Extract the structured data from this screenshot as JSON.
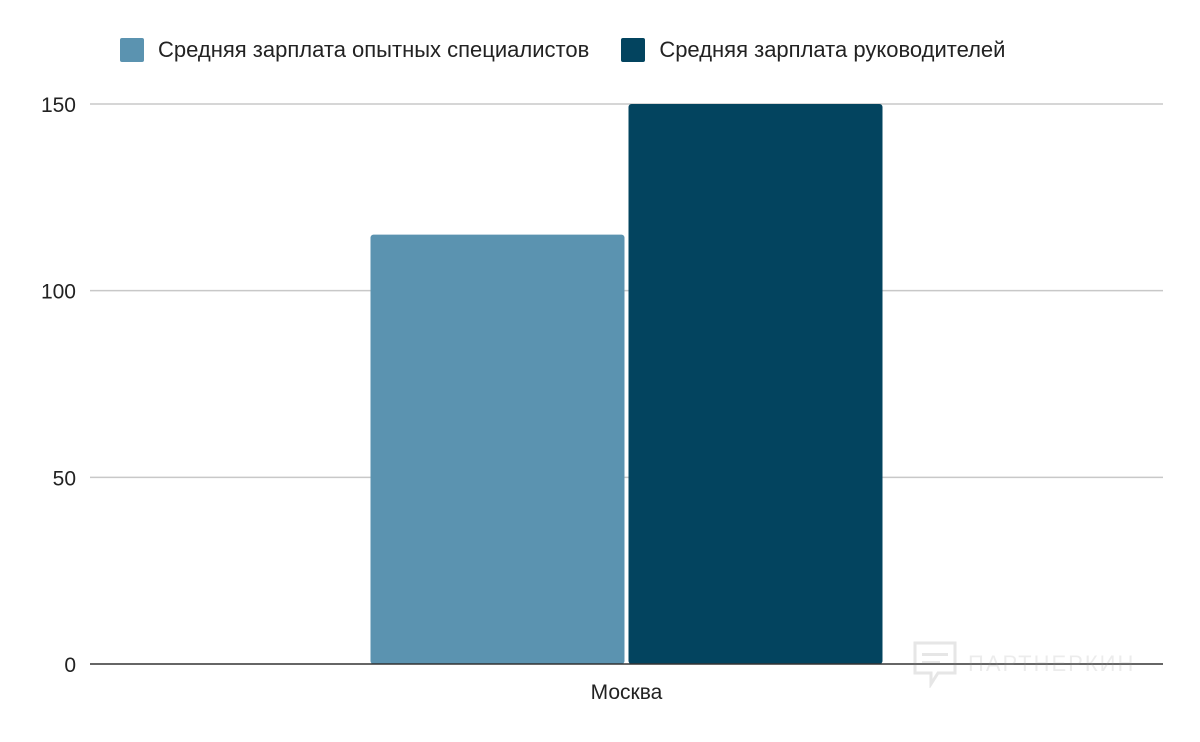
{
  "chart_data": {
    "type": "bar",
    "categories": [
      "Москва"
    ],
    "series": [
      {
        "name": "Средняя зарплата опытных специалистов",
        "values": [
          115
        ],
        "color": "#5b93b0"
      },
      {
        "name": "Средняя зарплата руководителей",
        "values": [
          150
        ],
        "color": "#03445f"
      }
    ],
    "ylim": [
      0,
      150
    ],
    "yticks": [
      "0",
      "50",
      "100",
      "150"
    ],
    "grid": true,
    "legend_position": "top-center"
  },
  "watermark": {
    "text": "ПАРТНЕРКИН",
    "icon": "chat-bubble-icon"
  }
}
